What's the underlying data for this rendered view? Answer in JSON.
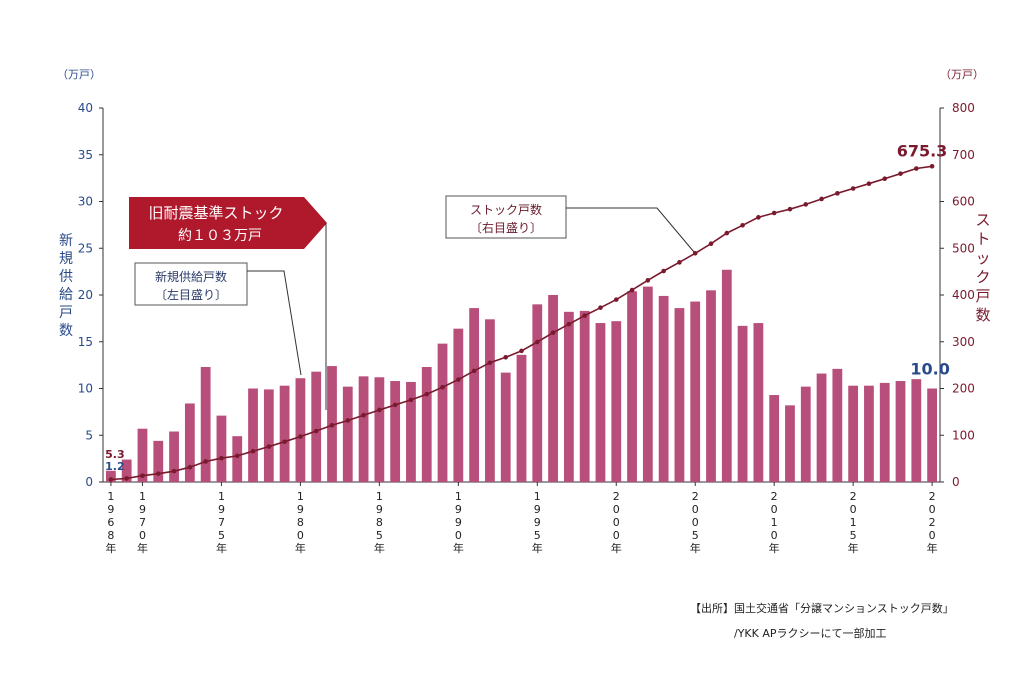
{
  "chart_data": {
    "type": "bar",
    "left_unit": "（万戸）",
    "right_unit": "（万戸）",
    "left_axis_title": "新規供給戸数",
    "right_axis_title": "ストック戸数",
    "left_ticks": [
      "0",
      "5",
      "10",
      "15",
      "20",
      "25",
      "30",
      "35",
      "40"
    ],
    "right_ticks": [
      "0",
      "100",
      "200",
      "300",
      "400",
      "500",
      "600",
      "700",
      "800"
    ],
    "ylim_left": [
      0,
      40
    ],
    "ylim_right": [
      0,
      800
    ],
    "x_years": [
      1968,
      1969,
      1970,
      1971,
      1972,
      1973,
      1974,
      1975,
      1976,
      1977,
      1978,
      1979,
      1980,
      1981,
      1982,
      1983,
      1984,
      1985,
      1986,
      1987,
      1988,
      1989,
      1990,
      1991,
      1992,
      1993,
      1994,
      1995,
      1996,
      1997,
      1998,
      1999,
      2000,
      2001,
      2002,
      2003,
      2004,
      2005,
      2006,
      2007,
      2008,
      2009,
      2010,
      2011,
      2012,
      2013,
      2014,
      2015,
      2016,
      2017,
      2018,
      2019,
      2020
    ],
    "x_tick_labels": [
      {
        "year": 1968,
        "text": "1968年"
      },
      {
        "year": 1970,
        "text": "1970年"
      },
      {
        "year": 1975,
        "text": "1975年"
      },
      {
        "year": 1980,
        "text": "1980年"
      },
      {
        "year": 1985,
        "text": "1985年"
      },
      {
        "year": 1990,
        "text": "1990年"
      },
      {
        "year": 1995,
        "text": "1995年"
      },
      {
        "year": 2000,
        "text": "2000年"
      },
      {
        "year": 2005,
        "text": "2005年"
      },
      {
        "year": 2010,
        "text": "2010年"
      },
      {
        "year": 2015,
        "text": "2015年"
      },
      {
        "year": 2020,
        "text": "2020年"
      }
    ],
    "series": [
      {
        "name": "新規供給戸数",
        "axis": "left",
        "kind": "bar",
        "color": "#b84f7b",
        "values": [
          1.2,
          2.4,
          5.7,
          4.4,
          5.4,
          8.4,
          12.3,
          7.1,
          4.9,
          10.0,
          9.9,
          10.3,
          11.1,
          11.8,
          12.4,
          10.2,
          11.3,
          11.2,
          10.8,
          10.7,
          12.3,
          14.8,
          16.4,
          18.6,
          17.4,
          11.7,
          13.6,
          19.0,
          20.0,
          18.2,
          18.3,
          17.0,
          17.2,
          20.4,
          20.9,
          19.9,
          18.6,
          19.3,
          20.5,
          22.7,
          16.7,
          17.0,
          9.3,
          8.2,
          10.2,
          11.6,
          12.1,
          10.3,
          10.3,
          10.6,
          10.8,
          11.0,
          10.0
        ]
      },
      {
        "name": "ストック戸数",
        "axis": "right",
        "kind": "line",
        "color": "#7a1a2e",
        "values": [
          5.3,
          7.7,
          13.4,
          17.8,
          23.2,
          31.6,
          43.9,
          51.0,
          55.9,
          65.9,
          75.8,
          86.1,
          97.2,
          109.0,
          121.4,
          131.6,
          142.9,
          154.1,
          164.9,
          175.6,
          187.9,
          202.7,
          219.1,
          237.7,
          255.1,
          266.8,
          280.4,
          299.4,
          319.4,
          337.6,
          355.9,
          372.9,
          390.1,
          410.5,
          431.4,
          451.3,
          469.9,
          489.2,
          509.7,
          532.4,
          549.1,
          566.1,
          575.4,
          583.6,
          593.8,
          605.4,
          617.5,
          627.8,
          638.1,
          648.7,
          659.5,
          670.5,
          675.3
        ]
      }
    ],
    "data_labels": {
      "stock_end": "675.3",
      "supply_end": "10.0",
      "stock_start": "5.3",
      "supply_start": "1.2"
    },
    "callouts": {
      "old_standard": [
        "旧耐震基準ストック",
        "約１０３万戸"
      ],
      "supply": [
        "新規供給戸数",
        "〔左目盛り〕"
      ],
      "stock": [
        "ストック戸数",
        "〔右目盛り〕"
      ]
    },
    "colors": {
      "bar": "#b84f7b",
      "line": "#7a1a2e",
      "left_axis_text": "#2a4a8a",
      "right_axis_text": "#7a1a2e",
      "callout_fill": "#b0182c",
      "end_label_stock": "#7a1a2e",
      "end_label_supply": "#2a4a8a"
    }
  },
  "source": {
    "line1": "【出所】国土交通省「分譲マンションストック戸数」",
    "line2": "/YKK APラクシーにて一部加工"
  }
}
